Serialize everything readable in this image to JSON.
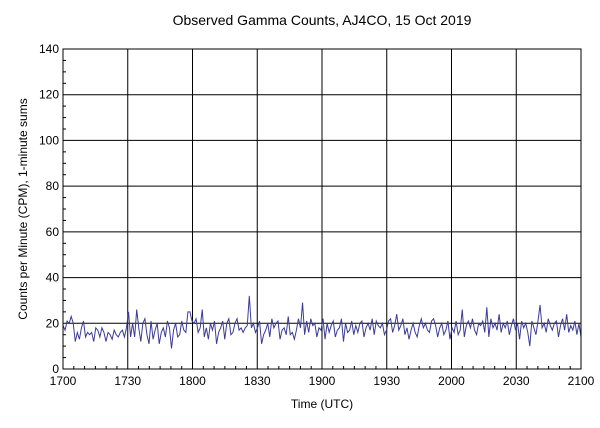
{
  "chart_data": {
    "type": "line",
    "title": "Observed Gamma Counts, AJ4CO, 15 Oct 2019",
    "xlabel": "Time (UTC)",
    "ylabel": "Counts per Minute (CPM), 1-minute sums",
    "x_tick_labels": [
      "1700",
      "1730",
      "1800",
      "1830",
      "1900",
      "1930",
      "2000",
      "2030",
      "2100"
    ],
    "y_tick_labels": [
      "0",
      "20",
      "40",
      "60",
      "80",
      "100",
      "120",
      "140"
    ],
    "ylim": [
      0,
      140
    ],
    "grid": true,
    "line_color": "#3c3c96",
    "series": [
      {
        "name": "",
        "values": [
          19,
          17,
          21,
          20,
          23,
          20,
          12,
          16,
          13,
          18,
          21,
          14,
          16,
          15,
          16,
          12,
          18,
          17,
          14,
          18,
          16,
          12,
          16,
          15,
          13,
          17,
          15,
          14,
          16,
          17,
          14,
          18,
          25,
          14,
          20,
          14,
          26,
          18,
          12,
          20,
          22,
          15,
          11,
          21,
          13,
          17,
          20,
          11,
          16,
          18,
          14,
          21,
          18,
          9,
          17,
          20,
          14,
          15,
          21,
          17,
          16,
          25,
          25,
          21,
          20,
          22,
          16,
          18,
          26,
          14,
          18,
          13,
          20,
          17,
          21,
          11,
          16,
          18,
          21,
          13,
          20,
          22,
          15,
          16,
          20,
          22,
          17,
          18,
          16,
          18,
          19,
          32,
          18,
          20,
          16,
          18,
          21,
          11,
          15,
          17,
          20,
          14,
          22,
          18,
          20,
          21,
          13,
          17,
          18,
          15,
          23,
          15,
          16,
          13,
          17,
          22,
          18,
          29,
          15,
          21,
          16,
          22,
          19,
          20,
          14,
          18,
          17,
          22,
          13,
          20,
          16,
          19,
          21,
          14,
          17,
          18,
          22,
          12,
          20,
          16,
          17,
          21,
          15,
          19,
          16,
          20,
          21,
          14,
          18,
          20,
          17,
          22,
          15,
          21,
          19,
          18,
          20,
          15,
          17,
          21,
          22,
          16,
          19,
          24,
          17,
          19,
          22,
          15,
          18,
          13,
          17,
          20,
          16,
          14,
          19,
          22,
          18,
          20,
          17,
          16,
          21,
          22,
          19,
          14,
          18,
          20,
          15,
          17,
          21,
          13,
          18,
          16,
          21,
          15,
          17,
          26,
          14,
          19,
          21,
          18,
          22,
          17,
          15,
          20,
          19,
          21,
          16,
          27,
          14,
          22,
          18,
          20,
          17,
          24,
          16,
          20,
          18,
          21,
          15,
          19,
          22,
          17,
          20,
          13,
          21,
          18,
          20,
          16,
          10,
          21,
          18,
          15,
          21,
          28,
          18,
          20,
          16,
          22,
          19,
          17,
          20,
          21,
          14,
          19,
          22,
          17,
          24,
          16,
          19,
          17,
          21,
          15,
          20,
          14
        ]
      }
    ]
  }
}
